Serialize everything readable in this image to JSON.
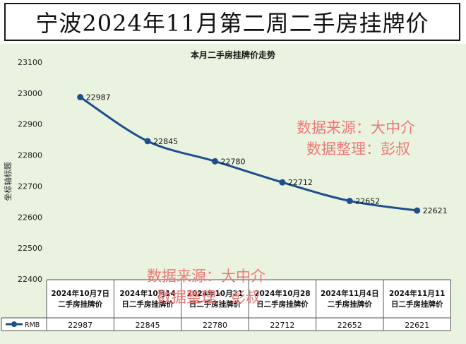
{
  "page_title": "宁波2024年11月第二周二手房挂牌价",
  "watermarks": [
    {
      "line1": "数据来源：大中介",
      "line2": "数据整理：彭叔"
    },
    {
      "line1": "数据来源：大中介",
      "line2": "数据整理：彭叔"
    }
  ],
  "colors": {
    "line": "#1f4e8c",
    "plot_bg": "#e9f3df",
    "watermark": "#ee7a78"
  },
  "chart_data": {
    "type": "line",
    "title": "本月二手房挂牌价走势",
    "ylabel": "坐标轴标题",
    "ylim": [
      22400,
      23100
    ],
    "yticks": [
      22400,
      22500,
      22600,
      22700,
      22800,
      22900,
      23000,
      23100
    ],
    "categories": [
      "2024年10月7日二手房挂牌价",
      "2024年10月14日二手房挂牌价",
      "2024年10月21日二手房挂牌价",
      "2024年10月28日二手房挂牌价",
      "2024年11月4日二手房挂牌价",
      "2024年11月11日二手房挂牌价"
    ],
    "series": [
      {
        "name": "RMB",
        "values": [
          22987,
          22845,
          22780,
          22712,
          22652,
          22621
        ]
      }
    ],
    "grid": false,
    "legend": "table"
  }
}
